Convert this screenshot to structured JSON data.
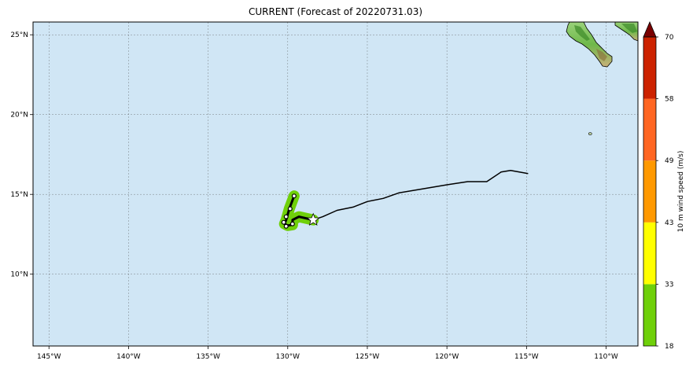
{
  "title": "CURRENT (Forecast of 20220731.03)",
  "map": {
    "lon_range": [
      -146,
      -108
    ],
    "lat_range": [
      5.5,
      25.8
    ],
    "lon_ticks": [
      {
        "value": -145,
        "label": "145°W"
      },
      {
        "value": -140,
        "label": "140°W"
      },
      {
        "value": -135,
        "label": "135°W"
      },
      {
        "value": -130,
        "label": "130°W"
      },
      {
        "value": -125,
        "label": "125°W"
      },
      {
        "value": -120,
        "label": "120°W"
      },
      {
        "value": -115,
        "label": "115°W"
      },
      {
        "value": -110,
        "label": "110°W"
      }
    ],
    "lat_ticks": [
      {
        "value": 25,
        "label": "25°N"
      },
      {
        "value": 20,
        "label": "20°N"
      },
      {
        "value": 15,
        "label": "15°N"
      },
      {
        "value": 10,
        "label": "10°N"
      }
    ],
    "ocean_color": "#d0e6f5",
    "grid": true
  },
  "storm": {
    "past_track": [
      [
        -114.9,
        16.3
      ],
      [
        -116.0,
        16.5
      ],
      [
        -116.6,
        16.4
      ],
      [
        -117.5,
        15.8
      ],
      [
        -118.7,
        15.8
      ],
      [
        -120.0,
        15.6
      ],
      [
        -121.5,
        15.35
      ],
      [
        -123.0,
        15.1
      ],
      [
        -124.0,
        14.75
      ],
      [
        -125.0,
        14.55
      ],
      [
        -125.9,
        14.2
      ],
      [
        -126.9,
        14.0
      ],
      [
        -127.8,
        13.6
      ],
      [
        -128.4,
        13.4
      ]
    ],
    "current_position": [
      -128.4,
      13.4
    ],
    "forecast_track": [
      [
        -128.4,
        13.4
      ],
      [
        -129.3,
        13.6
      ],
      [
        -129.7,
        13.4
      ],
      [
        -129.7,
        13.1
      ],
      [
        -130.0,
        13.05
      ],
      [
        -130.2,
        13.15
      ],
      [
        -130.1,
        13.4
      ],
      [
        -129.9,
        14.1
      ],
      [
        -129.6,
        14.9
      ]
    ],
    "forecast_points": [
      [
        -129.7,
        13.15
      ],
      [
        -130.1,
        13.0
      ],
      [
        -130.25,
        13.25
      ],
      [
        -130.1,
        13.6
      ],
      [
        -129.85,
        14.1
      ],
      [
        -129.6,
        14.9
      ]
    ],
    "wind_swath_color": "#6fd00a"
  },
  "colorbar": {
    "label": "10 m wind speed (m/s)",
    "levels": [
      {
        "value": 18,
        "label": "18"
      },
      {
        "value": 33,
        "label": "33"
      },
      {
        "value": 43,
        "label": "43"
      },
      {
        "value": 49,
        "label": "49"
      },
      {
        "value": 58,
        "label": "58"
      },
      {
        "value": 70,
        "label": "70"
      }
    ],
    "colors": [
      "#6fd00a",
      "#ffff00",
      "#ff9900",
      "#ff6622",
      "#cc2200"
    ],
    "extend_color": "#7a0000"
  },
  "land": {
    "island_position": [
      -111.0,
      18.8
    ]
  }
}
